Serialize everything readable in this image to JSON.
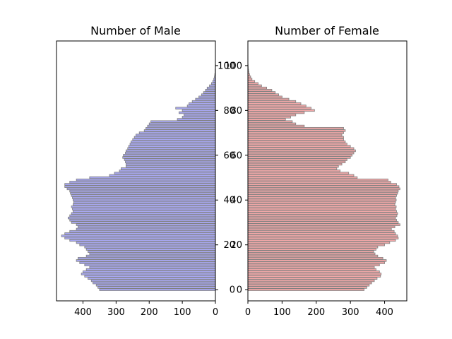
{
  "chart_data": [
    {
      "type": "bar",
      "orientation": "horizontal",
      "title": "Number of Male",
      "color": "#a7a7ef",
      "edge_color": "#808080",
      "xlim": [
        480,
        0
      ],
      "x_direction": "reversed",
      "xticks": [
        400,
        300,
        200,
        100,
        0
      ],
      "ylim": [
        -5,
        111
      ],
      "yticks": [
        0,
        20,
        40,
        60,
        80,
        100
      ],
      "ytick_side": "right",
      "ages": [
        0,
        1,
        2,
        3,
        4,
        5,
        6,
        7,
        8,
        9,
        10,
        11,
        12,
        13,
        14,
        15,
        16,
        17,
        18,
        19,
        20,
        21,
        22,
        23,
        24,
        25,
        26,
        27,
        28,
        29,
        30,
        31,
        32,
        33,
        34,
        35,
        36,
        37,
        38,
        39,
        40,
        41,
        42,
        43,
        44,
        45,
        46,
        47,
        48,
        49,
        50,
        51,
        52,
        53,
        54,
        55,
        56,
        57,
        58,
        59,
        60,
        61,
        62,
        63,
        64,
        65,
        66,
        67,
        68,
        69,
        70,
        71,
        72,
        73,
        74,
        75,
        76,
        77,
        78,
        79,
        80,
        81,
        82,
        83,
        84,
        85,
        86,
        87,
        88,
        89,
        90,
        91,
        92,
        93,
        94,
        95,
        96,
        97,
        98,
        99,
        100
      ],
      "values": [
        350,
        355,
        360,
        370,
        375,
        385,
        395,
        405,
        400,
        390,
        380,
        395,
        410,
        420,
        415,
        390,
        380,
        385,
        390,
        395,
        410,
        420,
        440,
        455,
        465,
        455,
        440,
        420,
        415,
        420,
        435,
        440,
        445,
        440,
        435,
        430,
        432,
        435,
        430,
        428,
        430,
        432,
        435,
        438,
        440,
        448,
        455,
        455,
        440,
        420,
        380,
        320,
        305,
        290,
        285,
        270,
        270,
        272,
        275,
        280,
        278,
        272,
        270,
        265,
        262,
        258,
        255,
        250,
        245,
        240,
        230,
        215,
        210,
        205,
        200,
        195,
        115,
        100,
        95,
        110,
        100,
        120,
        85,
        80,
        70,
        60,
        50,
        42,
        36,
        30,
        25,
        18,
        12,
        8,
        5,
        3,
        2,
        1,
        1,
        0.5,
        0
      ]
    },
    {
      "type": "bar",
      "orientation": "horizontal",
      "title": "Number of Female",
      "color": "#efa7a7",
      "edge_color": "#808080",
      "xlim": [
        0,
        465
      ],
      "xticks": [
        0,
        100,
        200,
        300,
        400
      ],
      "ylim": [
        -5,
        111
      ],
      "yticks": [
        0,
        20,
        40,
        60,
        80,
        100
      ],
      "ages": [
        0,
        1,
        2,
        3,
        4,
        5,
        6,
        7,
        8,
        9,
        10,
        11,
        12,
        13,
        14,
        15,
        16,
        17,
        18,
        19,
        20,
        21,
        22,
        23,
        24,
        25,
        26,
        27,
        28,
        29,
        30,
        31,
        32,
        33,
        34,
        35,
        36,
        37,
        38,
        39,
        40,
        41,
        42,
        43,
        44,
        45,
        46,
        47,
        48,
        49,
        50,
        51,
        52,
        53,
        54,
        55,
        56,
        57,
        58,
        59,
        60,
        61,
        62,
        63,
        64,
        65,
        66,
        67,
        68,
        69,
        70,
        71,
        72,
        73,
        74,
        75,
        76,
        77,
        78,
        79,
        80,
        81,
        82,
        83,
        84,
        85,
        86,
        87,
        88,
        89,
        90,
        91,
        92,
        93,
        94,
        95,
        96,
        97,
        98,
        99,
        100
      ],
      "values": [
        340,
        348,
        355,
        362,
        370,
        378,
        388,
        390,
        385,
        375,
        370,
        385,
        400,
        405,
        395,
        380,
        372,
        368,
        375,
        380,
        400,
        415,
        432,
        440,
        438,
        432,
        428,
        420,
        430,
        445,
        440,
        435,
        432,
        436,
        438,
        435,
        432,
        434,
        430,
        432,
        434,
        432,
        435,
        438,
        440,
        445,
        442,
        435,
        418,
        410,
        320,
        310,
        295,
        270,
        260,
        265,
        275,
        285,
        290,
        300,
        305,
        310,
        315,
        310,
        300,
        290,
        285,
        280,
        280,
        275,
        280,
        285,
        280,
        165,
        140,
        130,
        110,
        125,
        140,
        165,
        195,
        185,
        170,
        155,
        140,
        120,
        100,
        90,
        80,
        70,
        55,
        40,
        30,
        20,
        12,
        8,
        5,
        3,
        2,
        1,
        0
      ]
    }
  ]
}
